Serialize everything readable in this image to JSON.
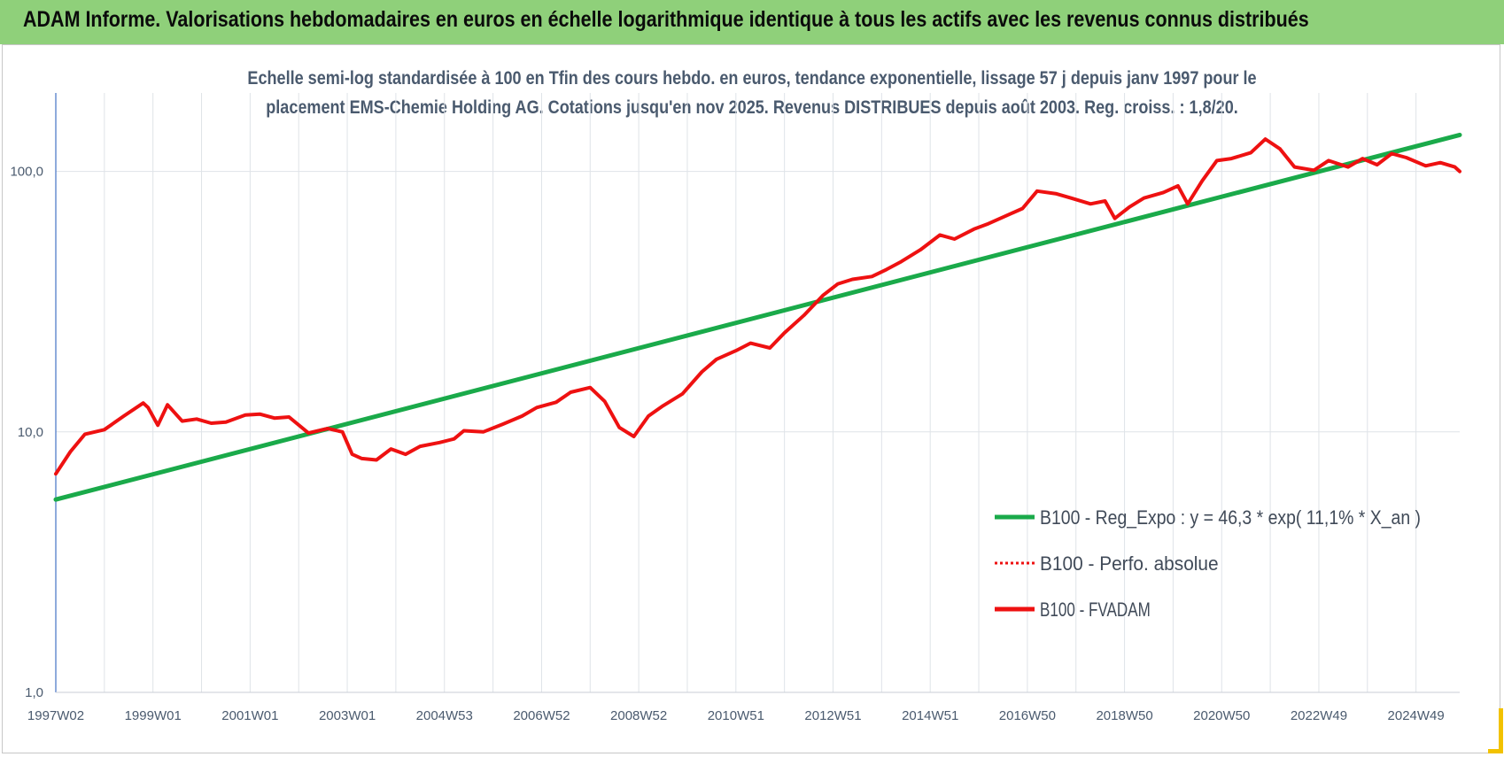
{
  "banner": {
    "title": "ADAM Informe. Valorisations hebdomadaires en euros en échelle logarithmique identique à tous les actifs avec les revenus connus distribués"
  },
  "chart_data": {
    "type": "line",
    "subtitle_line1": "Echelle semi-log standardisée à 100 en Tfin des cours hebdo. en euros, tendance exponentielle, lissage 57 j depuis janv 1997 pour le",
    "subtitle_line2": "placement EMS-Chemie Holding AG. Cotations jusqu'en nov 2025. Revenus DISTRIBUES depuis août 2003. Reg. croiss. : 1,8/20.",
    "y_scale": "log",
    "ylim": [
      1,
      200
    ],
    "xlim": [
      1997.0,
      2025.9
    ],
    "grid": true,
    "legend_position": "bottom-right",
    "y_ticks": [
      {
        "value": 1,
        "label": "1,0"
      },
      {
        "value": 10,
        "label": "10,0"
      },
      {
        "value": 100,
        "label": "100,0"
      }
    ],
    "x_ticks": [
      {
        "value": 1997.0,
        "label": "1997W02"
      },
      {
        "value": 1999.0,
        "label": "1999W01"
      },
      {
        "value": 2001.0,
        "label": "2001W01"
      },
      {
        "value": 2003.0,
        "label": "2003W01"
      },
      {
        "value": 2005.0,
        "label": "2004W53"
      },
      {
        "value": 2007.0,
        "label": "2006W52"
      },
      {
        "value": 2009.0,
        "label": "2008W52"
      },
      {
        "value": 2011.0,
        "label": "2010W51"
      },
      {
        "value": 2013.0,
        "label": "2012W51"
      },
      {
        "value": 2015.0,
        "label": "2014W51"
      },
      {
        "value": 2017.0,
        "label": "2016W50"
      },
      {
        "value": 2019.0,
        "label": "2018W50"
      },
      {
        "value": 2021.0,
        "label": "2020W50"
      },
      {
        "value": 2023.0,
        "label": "2022W49"
      },
      {
        "value": 2025.0,
        "label": "2024W49"
      }
    ],
    "series": [
      {
        "name": "B100 - Reg_Expo : y = 46,3 * exp( 11,1% *  X_an )",
        "color": "#1aaa4a",
        "style": "solid",
        "x": [
          1997.0,
          2025.9
        ],
        "y": [
          5.5,
          138
        ]
      },
      {
        "name": "B100 - Perfo. absolue",
        "color": "#ee1111",
        "style": "dotted",
        "x": [],
        "y": []
      },
      {
        "name": "B100 - FVADAM",
        "color": "#ee1111",
        "style": "solid",
        "x": [
          1997.0,
          1997.3,
          1997.6,
          1998.0,
          1998.4,
          1998.8,
          1998.9,
          1999.1,
          1999.3,
          1999.6,
          1999.9,
          2000.2,
          2000.5,
          2000.9,
          2001.2,
          2001.5,
          2001.8,
          2002.2,
          2002.6,
          2002.9,
          2003.1,
          2003.3,
          2003.6,
          2003.9,
          2004.2,
          2004.5,
          2004.9,
          2005.2,
          2005.4,
          2005.8,
          2006.2,
          2006.6,
          2006.9,
          2007.3,
          2007.6,
          2008.0,
          2008.3,
          2008.6,
          2008.9,
          2009.2,
          2009.5,
          2009.9,
          2010.3,
          2010.6,
          2011.0,
          2011.3,
          2011.7,
          2012.0,
          2012.4,
          2012.8,
          2013.1,
          2013.4,
          2013.8,
          2014.1,
          2014.4,
          2014.8,
          2015.2,
          2015.5,
          2015.9,
          2016.2,
          2016.6,
          2016.9,
          2017.2,
          2017.6,
          2017.9,
          2018.3,
          2018.6,
          2018.8,
          2019.1,
          2019.4,
          2019.8,
          2020.1,
          2020.3,
          2020.6,
          2020.9,
          2021.2,
          2021.6,
          2021.9,
          2022.2,
          2022.5,
          2022.9,
          2023.2,
          2023.6,
          2023.9,
          2024.2,
          2024.5,
          2024.8,
          2025.2,
          2025.5,
          2025.8,
          2025.9
        ],
        "y": [
          6.9,
          8.4,
          9.8,
          10.2,
          11.5,
          12.9,
          12.4,
          10.6,
          12.7,
          11.0,
          11.2,
          10.8,
          10.9,
          11.6,
          11.7,
          11.3,
          11.4,
          9.9,
          10.3,
          10.0,
          8.2,
          7.9,
          7.8,
          8.6,
          8.2,
          8.8,
          9.1,
          9.4,
          10.1,
          10.0,
          10.7,
          11.5,
          12.4,
          13.0,
          14.2,
          14.8,
          13.1,
          10.4,
          9.6,
          11.5,
          12.6,
          14.0,
          17.0,
          19.0,
          20.5,
          21.9,
          21.0,
          24.0,
          28.0,
          33.5,
          37.0,
          38.5,
          39.5,
          42.0,
          45.0,
          50.0,
          57.0,
          55.0,
          60.0,
          63.0,
          68.0,
          72.0,
          84.0,
          82.0,
          79.0,
          75.0,
          77.0,
          66.0,
          73.0,
          79.0,
          83.0,
          88.0,
          75.0,
          92.0,
          110.0,
          112.0,
          118.0,
          133.0,
          122.0,
          104.0,
          101.0,
          110.0,
          104.0,
          112.0,
          106.0,
          117.0,
          113.0,
          105.0,
          108.0,
          104.0,
          100.0
        ]
      }
    ],
    "legend": [
      {
        "label": "B100 - Reg_Expo : y = 46,3 * exp( 11,1% *  X_an )",
        "color": "#1aaa4a",
        "style": "solid"
      },
      {
        "label": "B100 - Perfo. absolue",
        "color": "#ee1111",
        "style": "dotted"
      },
      {
        "label": "B100 - FVADAM",
        "color": "#ee1111",
        "style": "solid"
      }
    ]
  }
}
